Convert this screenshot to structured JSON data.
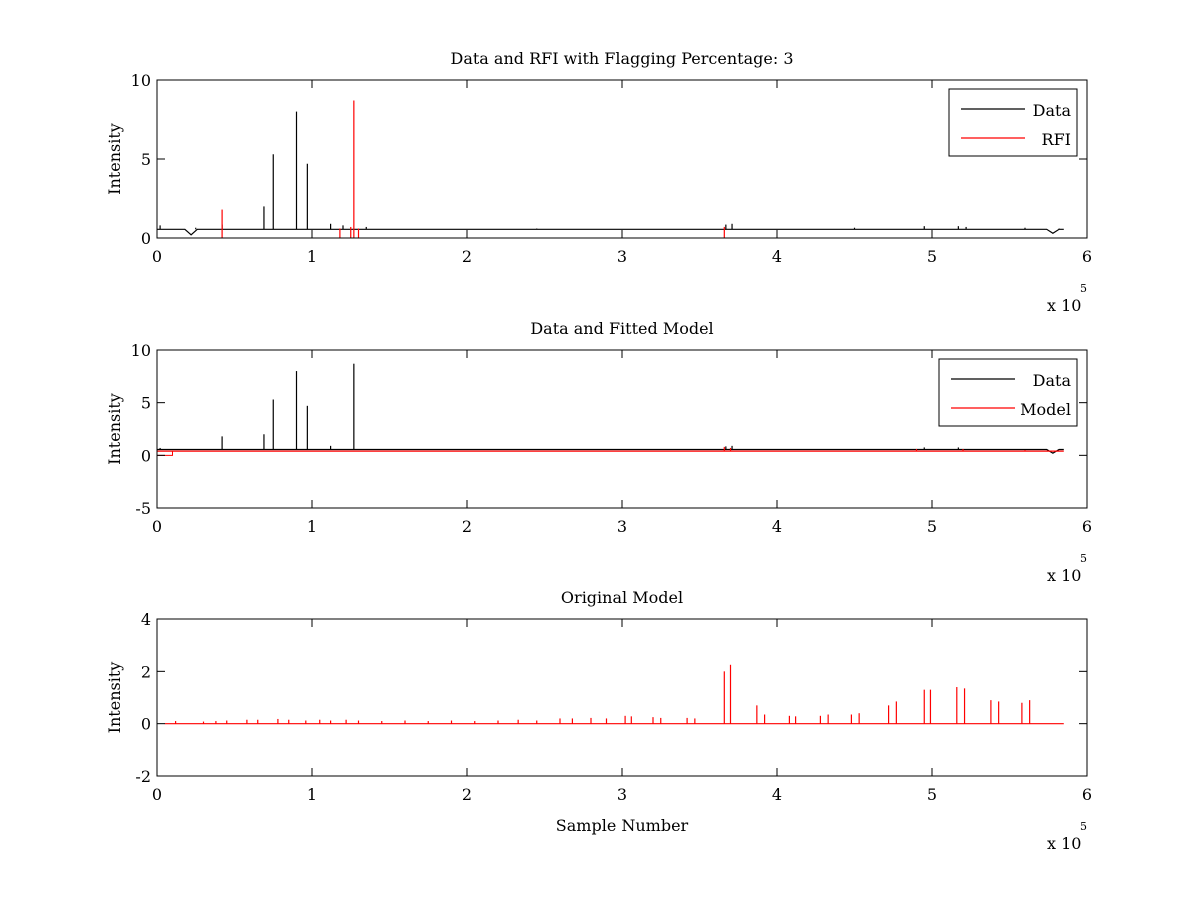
{
  "colors": {
    "data": "#000000",
    "red": "#ff0000"
  },
  "chart_data": [
    {
      "type": "line",
      "title": "Data and RFI with Flagging Percentage: 3",
      "xlabel": "",
      "ylabel": "Intensity",
      "xlim": [
        0,
        6
      ],
      "ylim": [
        0,
        10
      ],
      "xticks": [
        "0",
        "1",
        "2",
        "3",
        "4",
        "5",
        "6"
      ],
      "yticks": [
        "0",
        "5",
        "10"
      ],
      "xticks_values": [
        0,
        1,
        2,
        3,
        4,
        5,
        6
      ],
      "yticks_values": [
        0,
        5,
        10
      ],
      "x_exponent": {
        "base": "x 10",
        "power": "5"
      },
      "legend": {
        "position": "top-right",
        "entries": [
          "Data",
          "RFI"
        ]
      },
      "series": [
        {
          "name": "Data",
          "color": "#000000",
          "baseline": 0.55,
          "x_end": 5.85,
          "dips": [
            [
              0.22,
              0.2
            ],
            [
              5.78,
              0.3
            ]
          ],
          "spikes": [
            [
              0.02,
              0.8
            ],
            [
              0.25,
              0.65
            ],
            [
              0.42,
              0.85
            ],
            [
              0.69,
              2.0
            ],
            [
              0.75,
              5.3
            ],
            [
              0.9,
              8.0
            ],
            [
              0.97,
              4.7
            ],
            [
              1.12,
              0.9
            ],
            [
              1.2,
              0.8
            ],
            [
              1.35,
              0.7
            ],
            [
              2.45,
              0.6
            ],
            [
              3.67,
              0.85
            ],
            [
              3.71,
              0.9
            ],
            [
              4.5,
              0.65
            ],
            [
              4.95,
              0.75
            ],
            [
              5.17,
              0.75
            ],
            [
              5.22,
              0.7
            ],
            [
              5.6,
              0.65
            ],
            [
              5.82,
              0.6
            ]
          ]
        },
        {
          "name": "RFI",
          "color": "#ff0000",
          "spikes": [
            [
              0.42,
              1.8
            ],
            [
              1.18,
              0.6
            ],
            [
              1.25,
              0.7
            ],
            [
              1.27,
              8.7
            ],
            [
              1.3,
              0.6
            ],
            [
              3.66,
              0.7
            ]
          ]
        }
      ]
    },
    {
      "type": "line",
      "title": "Data and Fitted Model",
      "xlabel": "",
      "ylabel": "Intensity",
      "xlim": [
        0,
        6
      ],
      "ylim": [
        -5,
        10
      ],
      "xticks": [
        "0",
        "1",
        "2",
        "3",
        "4",
        "5",
        "6"
      ],
      "yticks": [
        "-5",
        "0",
        "5",
        "10"
      ],
      "xticks_values": [
        0,
        1,
        2,
        3,
        4,
        5,
        6
      ],
      "yticks_values": [
        -5,
        0,
        5,
        10
      ],
      "x_exponent": {
        "base": "x 10",
        "power": "5"
      },
      "legend": {
        "position": "top-right",
        "entries": [
          "Data",
          "Model"
        ]
      },
      "series": [
        {
          "name": "Data",
          "color": "#000000",
          "baseline": 0.55,
          "x_end": 5.85,
          "dips": [
            [
              5.78,
              0.2
            ]
          ],
          "spikes": [
            [
              0.02,
              0.7
            ],
            [
              0.42,
              1.8
            ],
            [
              0.69,
              2.0
            ],
            [
              0.75,
              5.3
            ],
            [
              0.9,
              8.0
            ],
            [
              0.97,
              4.7
            ],
            [
              1.12,
              0.9
            ],
            [
              1.27,
              8.7
            ],
            [
              3.67,
              0.85
            ],
            [
              3.71,
              0.9
            ],
            [
              4.95,
              0.75
            ],
            [
              5.17,
              0.75
            ]
          ]
        },
        {
          "name": "Model",
          "color": "#ff0000",
          "baseline": 0.4,
          "x_end": 5.85,
          "step_segment": {
            "x0": 0,
            "x1": 0.1,
            "y": 0.0
          },
          "spikes": [
            [
              3.66,
              0.8
            ],
            [
              3.7,
              0.7
            ],
            [
              4.9,
              0.6
            ],
            [
              5.2,
              0.6
            ],
            [
              5.6,
              0.5
            ]
          ]
        }
      ]
    },
    {
      "type": "line",
      "title": "Original Model",
      "xlabel": "Sample Number",
      "ylabel": "Intensity",
      "xlim": [
        0,
        6
      ],
      "ylim": [
        -2,
        4
      ],
      "xticks": [
        "0",
        "1",
        "2",
        "3",
        "4",
        "5",
        "6"
      ],
      "yticks": [
        "-2",
        "0",
        "2",
        "4"
      ],
      "xticks_values": [
        0,
        1,
        2,
        3,
        4,
        5,
        6
      ],
      "yticks_values": [
        -2,
        0,
        2,
        4
      ],
      "x_exponent": {
        "base": "x 10",
        "power": "5"
      },
      "legend": null,
      "series": [
        {
          "name": "",
          "color": "#ff0000",
          "baseline": 0.0,
          "x_start": 0.05,
          "x_end": 5.85,
          "spikes": [
            [
              0.12,
              0.1
            ],
            [
              0.3,
              0.08
            ],
            [
              0.38,
              0.1
            ],
            [
              0.45,
              0.12
            ],
            [
              0.58,
              0.15
            ],
            [
              0.65,
              0.15
            ],
            [
              0.78,
              0.18
            ],
            [
              0.85,
              0.15
            ],
            [
              0.96,
              0.12
            ],
            [
              1.05,
              0.15
            ],
            [
              1.12,
              0.12
            ],
            [
              1.22,
              0.15
            ],
            [
              1.3,
              0.12
            ],
            [
              1.45,
              0.1
            ],
            [
              1.6,
              0.12
            ],
            [
              1.75,
              0.1
            ],
            [
              1.9,
              0.12
            ],
            [
              2.05,
              0.1
            ],
            [
              2.2,
              0.12
            ],
            [
              2.33,
              0.15
            ],
            [
              2.45,
              0.12
            ],
            [
              2.6,
              0.2
            ],
            [
              2.68,
              0.2
            ],
            [
              2.8,
              0.22
            ],
            [
              2.9,
              0.2
            ],
            [
              3.02,
              0.3
            ],
            [
              3.06,
              0.28
            ],
            [
              3.2,
              0.25
            ],
            [
              3.25,
              0.22
            ],
            [
              3.42,
              0.22
            ],
            [
              3.47,
              0.2
            ],
            [
              3.66,
              2.0
            ],
            [
              3.7,
              2.25
            ],
            [
              3.87,
              0.7
            ],
            [
              3.92,
              0.35
            ],
            [
              4.08,
              0.3
            ],
            [
              4.12,
              0.28
            ],
            [
              4.28,
              0.3
            ],
            [
              4.33,
              0.35
            ],
            [
              4.48,
              0.35
            ],
            [
              4.53,
              0.4
            ],
            [
              4.72,
              0.7
            ],
            [
              4.77,
              0.85
            ],
            [
              4.95,
              1.3
            ],
            [
              4.99,
              1.3
            ],
            [
              5.16,
              1.4
            ],
            [
              5.21,
              1.35
            ],
            [
              5.38,
              0.9
            ],
            [
              5.43,
              0.85
            ],
            [
              5.58,
              0.8
            ],
            [
              5.63,
              0.9
            ]
          ]
        }
      ]
    }
  ]
}
